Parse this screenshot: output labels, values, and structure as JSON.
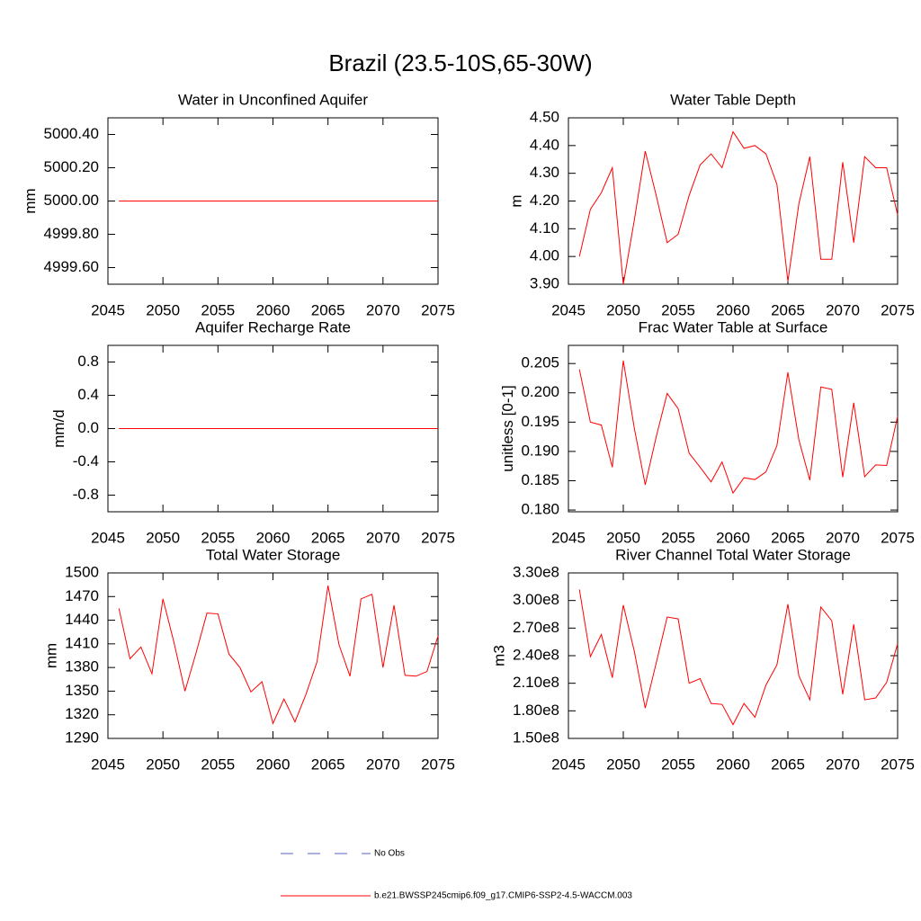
{
  "title": "Brazil (23.5-10S,65-30W)",
  "legend": [
    {
      "name": "No Obs",
      "color": "#5560c0",
      "style": "dashed"
    },
    {
      "name": "b.e21.BWSSP245cmip6.f09_g17.CMIP6-SSP2-4.5-WACCM.003",
      "color": "#ff0000",
      "style": "solid"
    }
  ],
  "chart_data": [
    {
      "type": "line",
      "title": "Water in Unconfined Aquifer",
      "ylabel": "mm",
      "x": [
        2046,
        2047,
        2048,
        2049,
        2050,
        2051,
        2052,
        2053,
        2054,
        2055,
        2056,
        2057,
        2058,
        2059,
        2060,
        2061,
        2062,
        2063,
        2064,
        2065,
        2066,
        2067,
        2068,
        2069,
        2070,
        2071,
        2072,
        2073,
        2074,
        2075
      ],
      "series": [
        {
          "color": "#ff0000",
          "values": [
            5000,
            5000,
            5000,
            5000,
            5000,
            5000,
            5000,
            5000,
            5000,
            5000,
            5000,
            5000,
            5000,
            5000,
            5000,
            5000,
            5000,
            5000,
            5000,
            5000,
            5000,
            5000,
            5000,
            5000,
            5000,
            5000,
            5000,
            5000,
            5000,
            5000
          ]
        }
      ],
      "xlim": [
        2045,
        2075
      ],
      "xticks": [
        2045,
        2050,
        2055,
        2060,
        2065,
        2070,
        2075
      ],
      "ylim": [
        4999.5,
        5000.5
      ],
      "yticks": [
        {
          "value": 4999.6,
          "label": "4999.60"
        },
        {
          "value": 4999.8,
          "label": "4999.80"
        },
        {
          "value": 5000,
          "label": "5000.00"
        },
        {
          "value": 5000.2,
          "label": "5000.20"
        },
        {
          "value": 5000.4,
          "label": "5000.40"
        }
      ]
    },
    {
      "type": "line",
      "title": "Water Table Depth",
      "ylabel": "m",
      "x": [
        2046,
        2047,
        2048,
        2049,
        2050,
        2051,
        2052,
        2053,
        2054,
        2055,
        2056,
        2057,
        2058,
        2059,
        2060,
        2061,
        2062,
        2063,
        2064,
        2065,
        2066,
        2067,
        2068,
        2069,
        2070,
        2071,
        2072,
        2073,
        2074,
        2075
      ],
      "series": [
        {
          "color": "#ff0000",
          "values": [
            4.0,
            4.17,
            4.23,
            4.32,
            3.9,
            4.13,
            4.38,
            4.22,
            4.05,
            4.08,
            4.22,
            4.33,
            4.37,
            4.32,
            4.45,
            4.39,
            4.4,
            4.37,
            4.26,
            3.91,
            4.19,
            4.36,
            3.99,
            3.99,
            4.34,
            4.05,
            4.36,
            4.32,
            4.32,
            4.15
          ]
        }
      ],
      "xlim": [
        2045,
        2075
      ],
      "xticks": [
        2045,
        2050,
        2055,
        2060,
        2065,
        2070,
        2075
      ],
      "ylim": [
        3.9,
        4.5
      ],
      "yticks": [
        {
          "value": 3.9,
          "label": "3.90"
        },
        {
          "value": 4.0,
          "label": "4.00"
        },
        {
          "value": 4.1,
          "label": "4.10"
        },
        {
          "value": 4.2,
          "label": "4.20"
        },
        {
          "value": 4.3,
          "label": "4.30"
        },
        {
          "value": 4.4,
          "label": "4.40"
        },
        {
          "value": 4.5,
          "label": "4.50"
        }
      ]
    },
    {
      "type": "line",
      "title": "Aquifer Recharge Rate",
      "ylabel": "mm/d",
      "x": [
        2046,
        2047,
        2048,
        2049,
        2050,
        2051,
        2052,
        2053,
        2054,
        2055,
        2056,
        2057,
        2058,
        2059,
        2060,
        2061,
        2062,
        2063,
        2064,
        2065,
        2066,
        2067,
        2068,
        2069,
        2070,
        2071,
        2072,
        2073,
        2074,
        2075
      ],
      "series": [
        {
          "color": "#ff0000",
          "values": [
            0,
            0,
            0,
            0,
            0,
            0,
            0,
            0,
            0,
            0,
            0,
            0,
            0,
            0,
            0,
            0,
            0,
            0,
            0,
            0,
            0,
            0,
            0,
            0,
            0,
            0,
            0,
            0,
            0,
            0
          ]
        }
      ],
      "xlim": [
        2045,
        2075
      ],
      "xticks": [
        2045,
        2050,
        2055,
        2060,
        2065,
        2070,
        2075
      ],
      "ylim": [
        -1,
        1
      ],
      "yticks": [
        -0.8,
        -0.4,
        {
          "value": 0,
          "label": "0.0"
        },
        0.4,
        0.8
      ]
    },
    {
      "type": "line",
      "title": "Frac Water Table at Surface",
      "ylabel": "unitless [0-1]",
      "x": [
        2046,
        2047,
        2048,
        2049,
        2050,
        2051,
        2052,
        2053,
        2054,
        2055,
        2056,
        2057,
        2058,
        2059,
        2060,
        2061,
        2062,
        2063,
        2064,
        2065,
        2066,
        2067,
        2068,
        2069,
        2070,
        2071,
        2072,
        2073,
        2074,
        2075
      ],
      "series": [
        {
          "color": "#ff0000",
          "values": [
            0.204,
            0.195,
            0.1945,
            0.1873,
            0.2055,
            0.194,
            0.1843,
            0.1925,
            0.1999,
            0.1973,
            0.1897,
            0.1873,
            0.1848,
            0.1882,
            0.1829,
            0.1855,
            0.1852,
            0.1865,
            0.191,
            0.2035,
            0.192,
            0.1851,
            0.201,
            0.2006,
            0.1856,
            0.1983,
            0.1857,
            0.1877,
            0.1876,
            0.196
          ]
        }
      ],
      "xlim": [
        2045,
        2075
      ],
      "xticks": [
        2045,
        2050,
        2055,
        2060,
        2065,
        2070,
        2075
      ],
      "ylim": [
        0.1797,
        0.2081
      ],
      "yticks": [
        {
          "value": 0.18,
          "label": "0.180"
        },
        0.185,
        {
          "value": 0.19,
          "label": "0.190"
        },
        0.195,
        {
          "value": 0.2,
          "label": "0.200"
        },
        0.205
      ]
    },
    {
      "type": "line",
      "title": "Total Water Storage",
      "ylabel": "mm",
      "x": [
        2046,
        2047,
        2048,
        2049,
        2050,
        2051,
        2052,
        2053,
        2054,
        2055,
        2056,
        2057,
        2058,
        2059,
        2060,
        2061,
        2062,
        2063,
        2064,
        2065,
        2066,
        2067,
        2068,
        2069,
        2070,
        2071,
        2072,
        2073,
        2074,
        2075
      ],
      "series": [
        {
          "color": "#ff0000",
          "values": [
            1455,
            1391,
            1406,
            1372,
            1467,
            1412,
            1350,
            1398,
            1449,
            1448,
            1397,
            1380,
            1349,
            1362,
            1309,
            1340,
            1311,
            1346,
            1387,
            1484,
            1409,
            1369,
            1467,
            1473,
            1380,
            1459,
            1370,
            1369,
            1375,
            1420
          ]
        }
      ],
      "xlim": [
        2045,
        2075
      ],
      "xticks": [
        2045,
        2050,
        2055,
        2060,
        2065,
        2070,
        2075
      ],
      "ylim": [
        1290,
        1500
      ],
      "yticks": [
        1290,
        1320,
        1350,
        1380,
        1410,
        1440,
        1470,
        1500
      ]
    },
    {
      "type": "line",
      "title": "River Channel Total Water Storage",
      "ylabel": "m3",
      "x": [
        2046,
        2047,
        2048,
        2049,
        2050,
        2051,
        2052,
        2053,
        2054,
        2055,
        2056,
        2057,
        2058,
        2059,
        2060,
        2061,
        2062,
        2063,
        2064,
        2065,
        2066,
        2067,
        2068,
        2069,
        2070,
        2071,
        2072,
        2073,
        2074,
        2075
      ],
      "series": [
        {
          "color": "#ff0000",
          "values": [
            312000000,
            239000000,
            263000000,
            216000000,
            295000000,
            245000000,
            183000000,
            232000000,
            282000000,
            280000000,
            210000000,
            215000000,
            188000000,
            187000000,
            165000000,
            188000000,
            173000000,
            208000000,
            230000000,
            296000000,
            218000000,
            192000000,
            293000000,
            278000000,
            198000000,
            274000000,
            192000000,
            194000000,
            211000000,
            253000000
          ]
        }
      ],
      "xlim": [
        2045,
        2075
      ],
      "xticks": [
        2045,
        2050,
        2055,
        2060,
        2065,
        2070,
        2075
      ],
      "ylim": [
        150000000,
        330000000
      ],
      "yticks": [
        {
          "value": 150000000,
          "label": "1.50e8"
        },
        {
          "value": 180000000,
          "label": "1.80e8"
        },
        {
          "value": 210000000,
          "label": "2.10e8"
        },
        {
          "value": 240000000,
          "label": "2.40e8"
        },
        {
          "value": 270000000,
          "label": "2.70e8"
        },
        {
          "value": 300000000,
          "label": "3.00e8"
        },
        {
          "value": 330000000,
          "label": "3.30e8"
        }
      ]
    }
  ]
}
